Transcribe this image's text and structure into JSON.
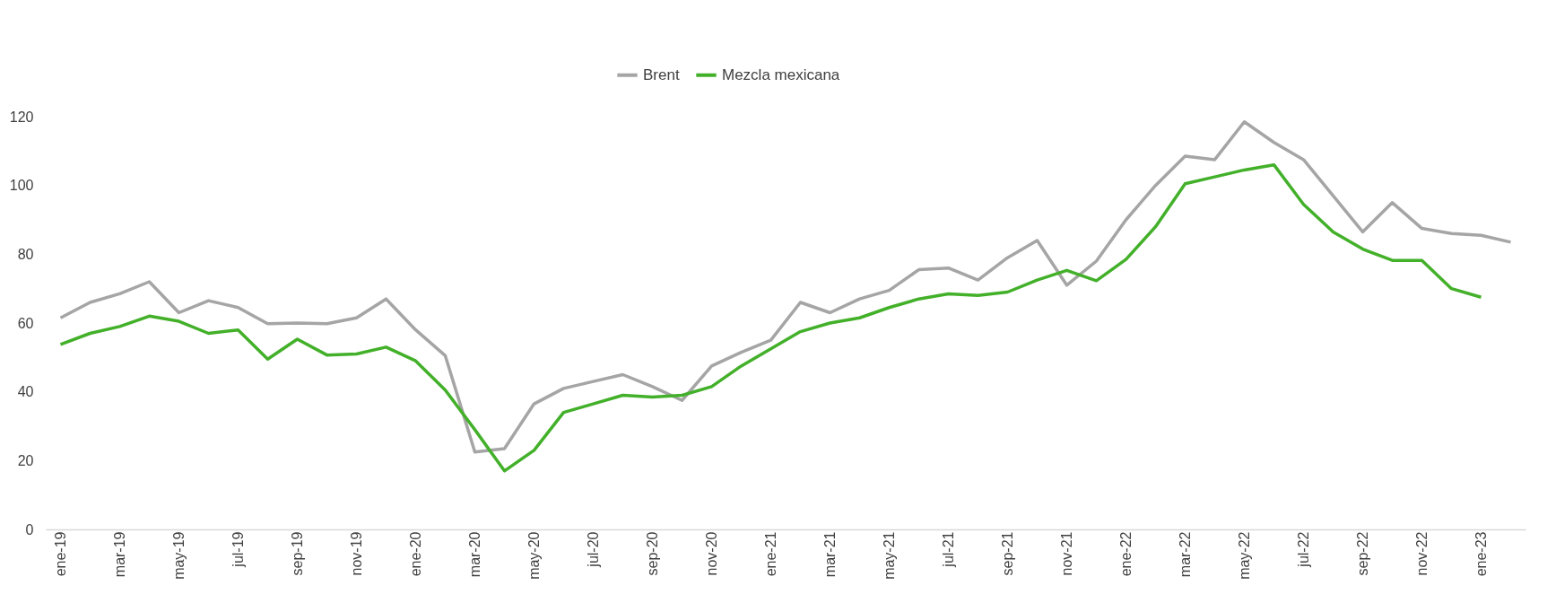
{
  "chart_data": {
    "type": "line",
    "categories": [
      "ene-19",
      null,
      "mar-19",
      null,
      "may-19",
      null,
      "jul-19",
      null,
      "sep-19",
      null,
      "nov-19",
      null,
      "ene-20",
      null,
      "mar-20",
      null,
      "may-20",
      null,
      "jul-20",
      null,
      "sep-20",
      null,
      "nov-20",
      null,
      "ene-21",
      null,
      "mar-21",
      null,
      "may-21",
      null,
      "jul-21",
      null,
      "sep-21",
      null,
      "nov-21",
      null,
      "ene-22",
      null,
      "mar-22",
      null,
      "may-22",
      null,
      "jul-22",
      null,
      "sep-22",
      null,
      "nov-22",
      null,
      "ene-23",
      null
    ],
    "series": [
      {
        "name": "Brent",
        "color": "#a5a5a5",
        "values": [
          61.5,
          66,
          68.5,
          72,
          63,
          66.5,
          64.5,
          59.8,
          60,
          59.8,
          61.5,
          67,
          58,
          50.5,
          22.5,
          23.5,
          36.5,
          41,
          43,
          45,
          41.5,
          37.5,
          47.5,
          51.5,
          55,
          66,
          63,
          67,
          69.5,
          75.5,
          76,
          72.5,
          79,
          84,
          71,
          78,
          90,
          100,
          108.5,
          107.5,
          118.5,
          112.5,
          107.5,
          97,
          86.5,
          95,
          87.5,
          86,
          85.5,
          83.5
        ]
      },
      {
        "name": "Mezcla mexicana",
        "color": "#43b02a",
        "values": [
          53.8,
          57,
          59,
          62,
          60.5,
          57,
          58,
          49.5,
          55.3,
          50.7,
          51,
          53,
          49,
          40.5,
          29,
          17,
          23,
          34,
          36.5,
          39,
          38.5,
          39,
          41.5,
          47.5,
          52.5,
          57.5,
          60,
          61.5,
          64.5,
          67,
          68.5,
          68,
          69,
          72.5,
          75.3,
          72.3,
          78.5,
          88,
          100.5,
          102.5,
          104.5,
          106,
          94.5,
          86.5,
          81.5,
          78.2,
          78.2,
          70,
          67.5,
          null
        ]
      }
    ],
    "ylim": [
      0,
      120
    ],
    "yticks": [
      0,
      20,
      40,
      60,
      80,
      100,
      120
    ],
    "grid": false,
    "legend": "top",
    "marker": "none",
    "line_style": "solid"
  }
}
